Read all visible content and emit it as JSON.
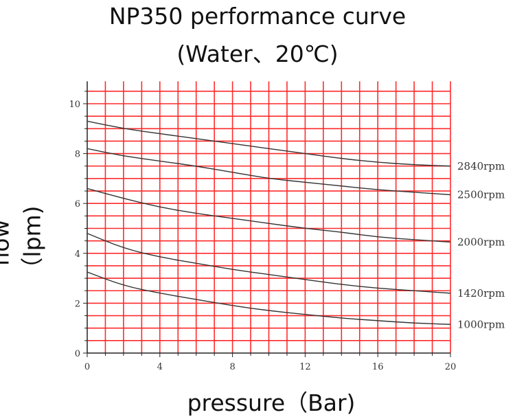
{
  "chart_data": {
    "type": "line",
    "title": "NP350 performance curve",
    "subtitle": "(Water、20℃)",
    "xlabel": "pressure（Bar)",
    "ylabel": "flow（lpm)",
    "xlim": [
      0,
      20
    ],
    "ylim": [
      0,
      10.9
    ],
    "xticks": [
      0,
      4,
      8,
      12,
      16,
      20
    ],
    "yticks": [
      0,
      2,
      4,
      6,
      8,
      10
    ],
    "grid": true,
    "grid_color": "#ff2a2a",
    "line_color": "#333333",
    "x": [
      0,
      2,
      4,
      6,
      8,
      10,
      12,
      14,
      16,
      18,
      20
    ],
    "series": [
      {
        "name": "2840rpm",
        "values": [
          9.3,
          9.0,
          8.8,
          8.6,
          8.4,
          8.2,
          8.0,
          7.8,
          7.65,
          7.55,
          7.5
        ]
      },
      {
        "name": "2500rpm",
        "values": [
          8.2,
          7.9,
          7.7,
          7.5,
          7.25,
          7.0,
          6.85,
          6.7,
          6.55,
          6.45,
          6.35
        ]
      },
      {
        "name": "2000rpm",
        "values": [
          6.6,
          6.2,
          5.85,
          5.6,
          5.4,
          5.2,
          5.0,
          4.85,
          4.65,
          4.55,
          4.45
        ]
      },
      {
        "name": "1420rpm",
        "values": [
          4.8,
          4.2,
          3.85,
          3.6,
          3.35,
          3.15,
          2.95,
          2.75,
          2.6,
          2.5,
          2.4
        ]
      },
      {
        "name": "1000rpm",
        "values": [
          3.25,
          2.7,
          2.4,
          2.15,
          1.9,
          1.7,
          1.55,
          1.4,
          1.3,
          1.2,
          1.15
        ]
      }
    ]
  }
}
